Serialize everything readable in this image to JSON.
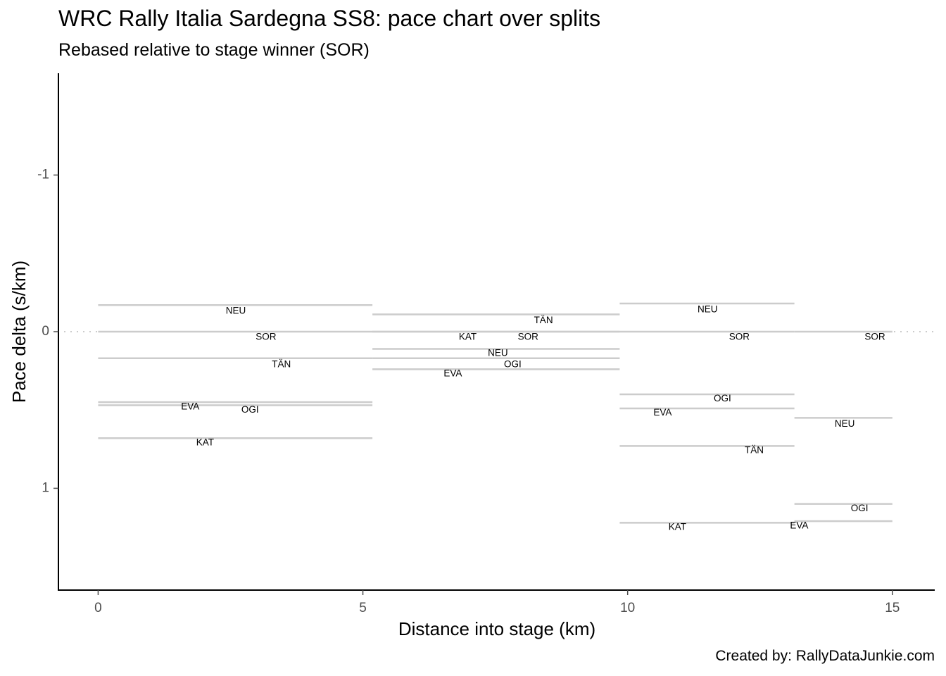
{
  "title": "WRC Rally Italia Sardegna SS8: pace chart over splits",
  "subtitle": "Rebased relative to stage winner (SOR)",
  "caption": "Created by: RallyDataJunkie.com",
  "colors": {
    "segment": "#cccccc",
    "reference_line": "#cccccc",
    "axis": "#000000",
    "tick_text": "#4d4d4d"
  },
  "chart_data": {
    "type": "line",
    "subtype": "pace-chart-step-segments",
    "xlabel": "Distance into stage (km)",
    "ylabel": "Pace delta (s/km)",
    "xlim": [
      -0.75,
      15.8
    ],
    "ylim": [
      1.65,
      -1.65
    ],
    "y_reversed": true,
    "x_ticks": [
      0,
      5,
      10,
      15
    ],
    "y_ticks": [
      -1,
      0,
      1
    ],
    "y_tick_labels": [
      "-1",
      "0",
      "1"
    ],
    "grid": false,
    "reference_line": {
      "y": 0,
      "style": "dotted"
    },
    "segments": [
      {
        "driver": "NEU",
        "x_start": 0,
        "x_end": 5.18,
        "pace": -0.17
      },
      {
        "driver": "SOR",
        "x_start": 0,
        "x_end": 5.18,
        "pace": 0
      },
      {
        "driver": "TÄN",
        "x_start": 0,
        "x_end": 5.18,
        "pace": 0.17
      },
      {
        "driver": "EVA",
        "x_start": 0,
        "x_end": 5.18,
        "pace": 0.45
      },
      {
        "driver": "OGI",
        "x_start": 0,
        "x_end": 5.18,
        "pace": 0.47
      },
      {
        "driver": "KAT",
        "x_start": 0,
        "x_end": 5.18,
        "pace": 0.68
      },
      {
        "driver": "TÄN",
        "x_start": 5.18,
        "x_end": 9.85,
        "pace": -0.11
      },
      {
        "driver": "KAT",
        "x_start": 5.18,
        "x_end": 9.85,
        "pace": 0
      },
      {
        "driver": "SOR",
        "x_start": 5.18,
        "x_end": 9.85,
        "pace": 0
      },
      {
        "driver": "NEU",
        "x_start": 5.18,
        "x_end": 9.85,
        "pace": 0.11
      },
      {
        "driver": "OGI",
        "x_start": 5.18,
        "x_end": 9.85,
        "pace": 0.17
      },
      {
        "driver": "EVA",
        "x_start": 5.18,
        "x_end": 9.85,
        "pace": 0.24
      },
      {
        "driver": "NEU",
        "x_start": 9.85,
        "x_end": 13.15,
        "pace": -0.18
      },
      {
        "driver": "SOR",
        "x_start": 9.85,
        "x_end": 13.15,
        "pace": 0
      },
      {
        "driver": "OGI",
        "x_start": 9.85,
        "x_end": 13.15,
        "pace": 0.4
      },
      {
        "driver": "EVA",
        "x_start": 9.85,
        "x_end": 13.15,
        "pace": 0.49
      },
      {
        "driver": "TÄN",
        "x_start": 9.85,
        "x_end": 13.15,
        "pace": 0.73
      },
      {
        "driver": "KAT",
        "x_start": 9.85,
        "x_end": 13.15,
        "pace": 1.22
      },
      {
        "driver": "SOR",
        "x_start": 13.15,
        "x_end": 15.0,
        "pace": 0
      },
      {
        "driver": "NEU",
        "x_start": 13.15,
        "x_end": 15.0,
        "pace": 0.55
      },
      {
        "driver": "OGI",
        "x_start": 13.15,
        "x_end": 15.0,
        "pace": 1.1
      },
      {
        "driver": "EVA",
        "x_start": 13.15,
        "x_end": 15.0,
        "pace": 1.21
      }
    ],
    "labels": [
      {
        "text": "NEU",
        "x": 2.6,
        "y": -0.13
      },
      {
        "text": "SOR",
        "x": 3.17,
        "y": 0.035
      },
      {
        "text": "TÄN",
        "x": 3.46,
        "y": 0.21
      },
      {
        "text": "EVA",
        "x": 1.74,
        "y": 0.48
      },
      {
        "text": "OGI",
        "x": 2.87,
        "y": 0.5
      },
      {
        "text": "KAT",
        "x": 2.02,
        "y": 0.71
      },
      {
        "text": "TÄN",
        "x": 8.41,
        "y": -0.07
      },
      {
        "text": "KAT",
        "x": 6.98,
        "y": 0.035
      },
      {
        "text": "SOR",
        "x": 8.12,
        "y": 0.035
      },
      {
        "text": "NEU",
        "x": 7.55,
        "y": 0.14
      },
      {
        "text": "OGI",
        "x": 7.83,
        "y": 0.21
      },
      {
        "text": "EVA",
        "x": 6.7,
        "y": 0.27
      },
      {
        "text": "NEU",
        "x": 11.51,
        "y": -0.14
      },
      {
        "text": "SOR",
        "x": 12.11,
        "y": 0.035
      },
      {
        "text": "OGI",
        "x": 11.79,
        "y": 0.43
      },
      {
        "text": "EVA",
        "x": 10.66,
        "y": 0.52
      },
      {
        "text": "TÄN",
        "x": 12.39,
        "y": 0.76
      },
      {
        "text": "KAT",
        "x": 10.94,
        "y": 1.25
      },
      {
        "text": "SOR",
        "x": 14.67,
        "y": 0.035
      },
      {
        "text": "NEU",
        "x": 14.1,
        "y": 0.59
      },
      {
        "text": "OGI",
        "x": 14.38,
        "y": 1.13
      },
      {
        "text": "EVA",
        "x": 13.24,
        "y": 1.24
      }
    ]
  }
}
